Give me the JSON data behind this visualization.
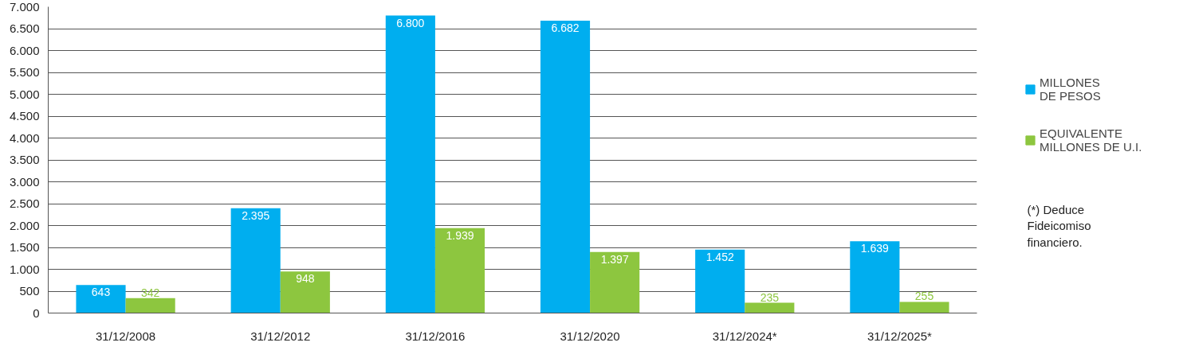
{
  "chart_data": {
    "type": "bar",
    "categories": [
      "31/12/2008",
      "31/12/2012",
      "31/12/2016",
      "31/12/2020",
      "31/12/2024*",
      "31/12/2025*"
    ],
    "series": [
      {
        "name": "MILLONES\nDE PESOS",
        "color": "#00aeef",
        "values": [
          643,
          2395,
          6800,
          6682,
          1452,
          1639
        ],
        "value_labels": [
          "643",
          "2.395",
          "6.800",
          "6.682",
          "1.452",
          "1.639"
        ]
      },
      {
        "name": "EQUIVALENTE\nMILLONES DE U.I.",
        "color": "#8dc63f",
        "values": [
          342,
          948,
          1939,
          1397,
          235,
          255
        ],
        "value_labels": [
          "342",
          "948",
          "1.939",
          "1.397",
          "235",
          "255"
        ]
      }
    ],
    "ylim": [
      0,
      7000
    ],
    "yticks": [
      0,
      500,
      {
        "value": 1000,
        "label": "1.000"
      },
      {
        "value": 1500,
        "label": "1.500"
      },
      {
        "value": 2000,
        "label": "2.000"
      },
      {
        "value": 2500,
        "label": "2.500"
      },
      {
        "value": 3000,
        "label": "3.000"
      },
      {
        "value": 3500,
        "label": "3.500"
      },
      {
        "value": 4000,
        "label": "4.000"
      },
      {
        "value": 4500,
        "label": "4.500"
      },
      {
        "value": 5000,
        "label": "5.000"
      },
      {
        "value": 5500,
        "label": "5.500"
      },
      {
        "value": 6000,
        "label": "6.000"
      },
      {
        "value": 6500,
        "label": "6.500"
      },
      {
        "value": 7000,
        "label": "7.000"
      }
    ],
    "grid": "y",
    "legend": "right",
    "annotations": [
      "(*)  Deduce\nFideicomiso\nfinanciero."
    ]
  }
}
